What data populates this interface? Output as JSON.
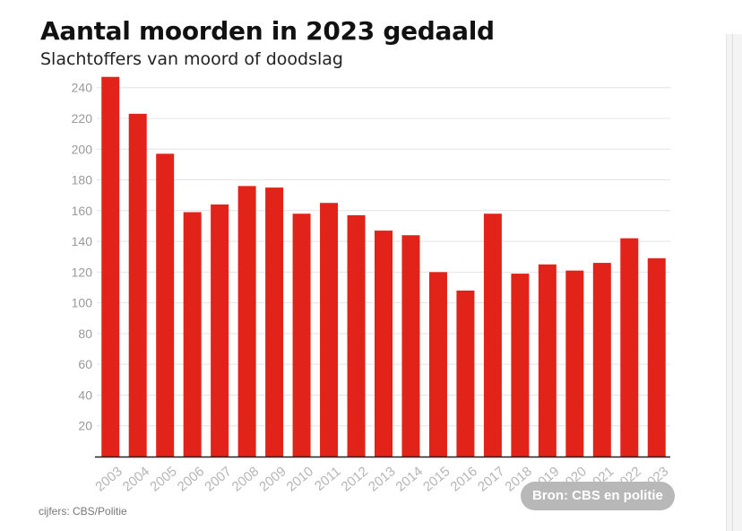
{
  "header": {
    "title": "Aantal moorden in 2023 gedaald",
    "subtitle": "Slachtoffers van moord of doodslag"
  },
  "footer": {
    "note": "cijfers: CBS/Politie",
    "source_badge": "Bron: CBS en politie"
  },
  "colors": {
    "bar": "#e2231a",
    "grid": "#e4e4e4",
    "axis": "#222222"
  },
  "chart_data": {
    "type": "bar",
    "title": "Aantal moorden in 2023 gedaald",
    "subtitle": "Slachtoffers van moord of doodslag",
    "categories": [
      "2003",
      "2004",
      "2005",
      "2006",
      "2007",
      "2008",
      "2009",
      "2010",
      "2011",
      "2012",
      "2013",
      "2014",
      "2015",
      "2016",
      "2017",
      "2018",
      "2019",
      "2020",
      "2021",
      "2022",
      "2023"
    ],
    "values": [
      247,
      223,
      197,
      159,
      164,
      176,
      175,
      158,
      165,
      157,
      147,
      144,
      120,
      108,
      158,
      119,
      125,
      121,
      126,
      142,
      129
    ],
    "yticks": [
      20,
      40,
      60,
      80,
      100,
      120,
      140,
      160,
      180,
      200,
      220,
      240
    ],
    "ylim": [
      0,
      250
    ],
    "xlabel": "",
    "ylabel": "",
    "grid": true,
    "legend": "none"
  }
}
